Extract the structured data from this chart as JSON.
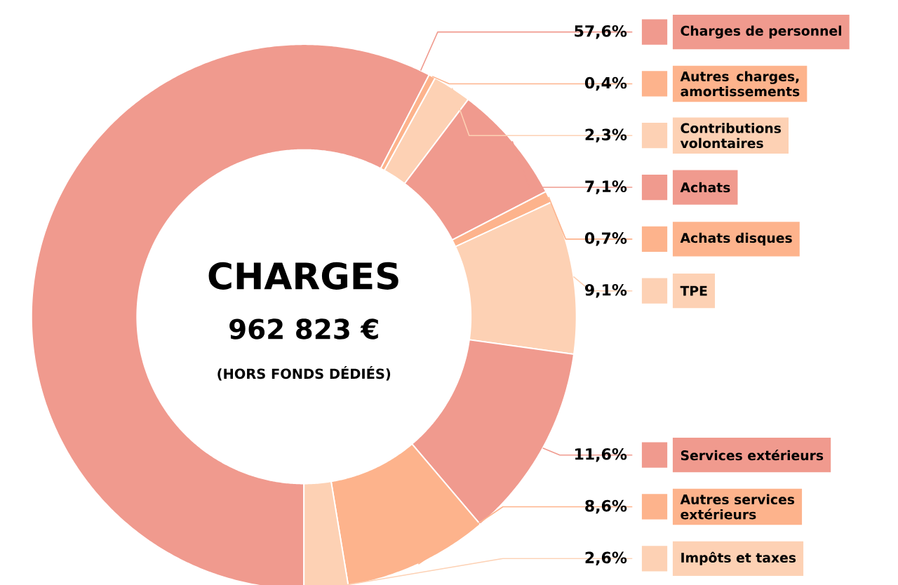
{
  "chart_data": {
    "type": "donut",
    "title": "CHARGES",
    "subtitle": "962 823 €",
    "annotations": [
      "(HORS FONDS DÉDIÉS)"
    ],
    "legend": "right",
    "categories": [
      "Charges de personnel",
      "Autres charges, amortissements",
      "Contributions volontaires",
      "Achats",
      "Achats disques",
      "TPE",
      "Services extérieurs",
      "Autres services extérieurs",
      "Impôts et taxes"
    ],
    "values": [
      57.6,
      0.4,
      2.3,
      7.1,
      0.7,
      9.1,
      11.6,
      8.6,
      2.6
    ],
    "value_labels": [
      "57,6%",
      "0,4%",
      "2,3%",
      "7,1%",
      "0,7%",
      "9,1%",
      "11,6%",
      "8,6%",
      "2,6%"
    ],
    "colors": [
      "#f09a8e",
      "#fdb38c",
      "#fdd1b4",
      "#f09a8e",
      "#fdb38c",
      "#fdd1b4",
      "#f09a8e",
      "#fdb38c",
      "#fdd1b4"
    ]
  }
}
